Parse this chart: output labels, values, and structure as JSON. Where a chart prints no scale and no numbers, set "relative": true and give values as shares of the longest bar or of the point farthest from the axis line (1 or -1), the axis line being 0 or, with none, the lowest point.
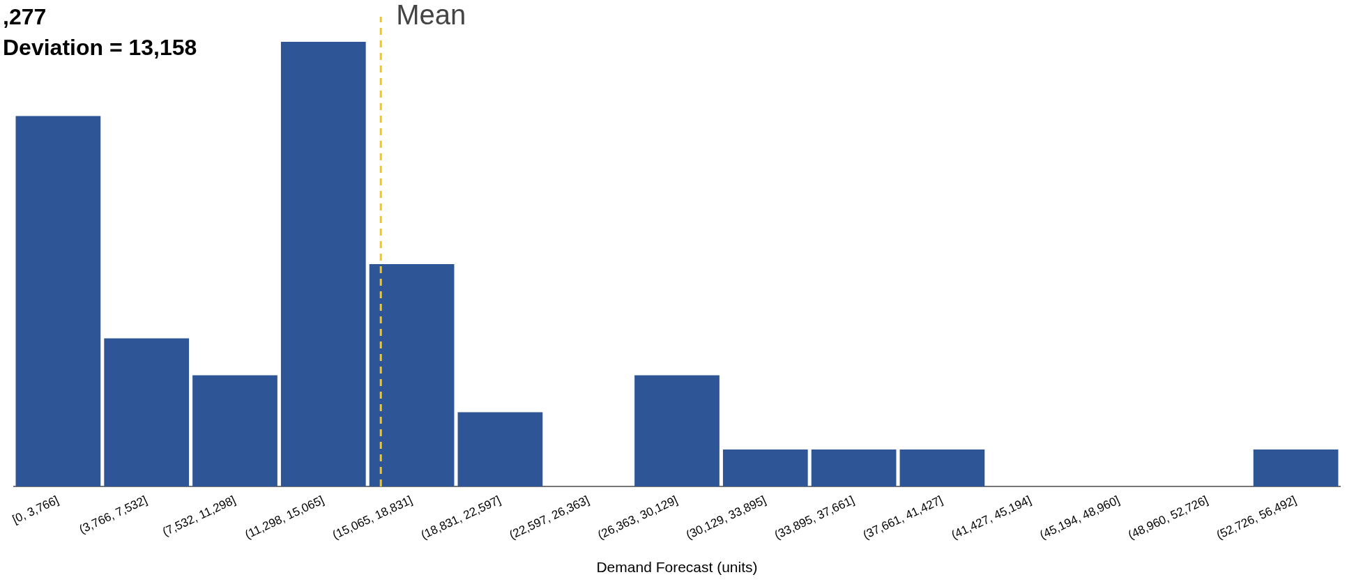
{
  "chart_data": {
    "type": "bar",
    "title": ",277",
    "subtitle": "Deviation = 13,158",
    "xlabel": "Demand Forecast (units)",
    "categories": [
      "[0, 3,766]",
      "(3,766, 7,532]",
      "(7,532, 11,298]",
      "(11,298, 15,065]",
      "(15,065, 18,831]",
      "(18,831, 22,597]",
      "(22,597, 26,363]",
      "(26,363, 30,129]",
      "(30,129, 33,895]",
      "(33,895, 37,661]",
      "(37,661, 41,427]",
      "(41,427, 45,194]",
      "(45,194, 48,960]",
      "(48,960, 52,726]",
      "(52,726, 56,492]"
    ],
    "values": [
      0.833,
      0.333,
      0.25,
      1,
      0.5,
      0.167,
      0,
      0.25,
      0.083,
      0.083,
      0.083,
      0,
      0,
      0,
      0.083
    ],
    "relative": true,
    "color": "#2e5595",
    "ref_lines": [
      {
        "axis": "x",
        "value": "(15,065, 18,831]",
        "label": "Mean",
        "color": "#f5c518",
        "line_style": "dashed"
      }
    ],
    "grid": false,
    "legend": false
  }
}
